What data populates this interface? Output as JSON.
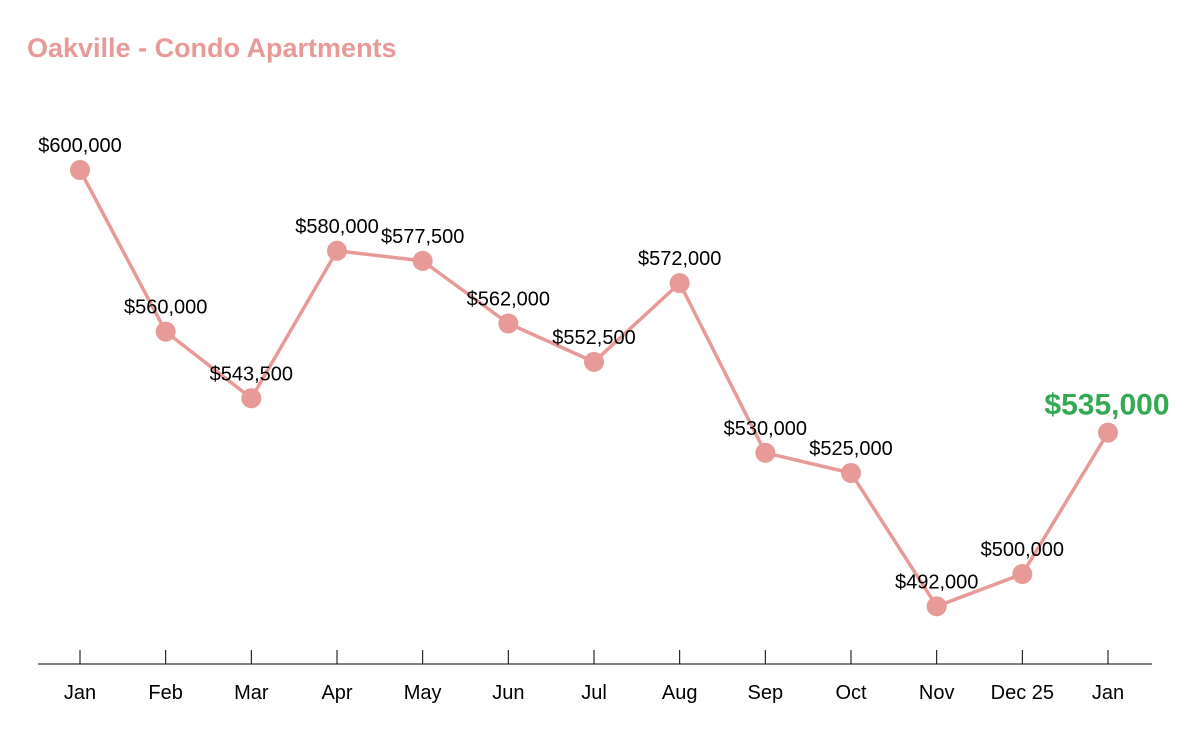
{
  "chart_data": {
    "type": "line",
    "title": "Oakville - Condo Apartments",
    "categories": [
      "Jan",
      "Feb",
      "Mar",
      "Apr",
      "May",
      "Jun",
      "Jul",
      "Aug",
      "Sep",
      "Oct",
      "Nov",
      "Dec 25",
      "Jan"
    ],
    "values": [
      600000,
      560000,
      543500,
      580000,
      577500,
      562000,
      552500,
      572000,
      530000,
      525000,
      492000,
      500000,
      535000
    ],
    "labels": [
      "$600,000",
      "$560,000",
      "$543,500",
      "$580,000",
      "$577,500",
      "$562,000",
      "$552,500",
      "$572,000",
      "$530,000",
      "$525,000",
      "$492,000",
      "$500,000",
      "$535,000"
    ],
    "highlight_index": 12,
    "xlabel": "",
    "ylabel": "",
    "ylim": [
      480000,
      610000
    ],
    "grid": false,
    "colors": {
      "line": "#e89a98",
      "title": "#e89a98",
      "highlight": "#34a853",
      "label": "#000000"
    }
  }
}
